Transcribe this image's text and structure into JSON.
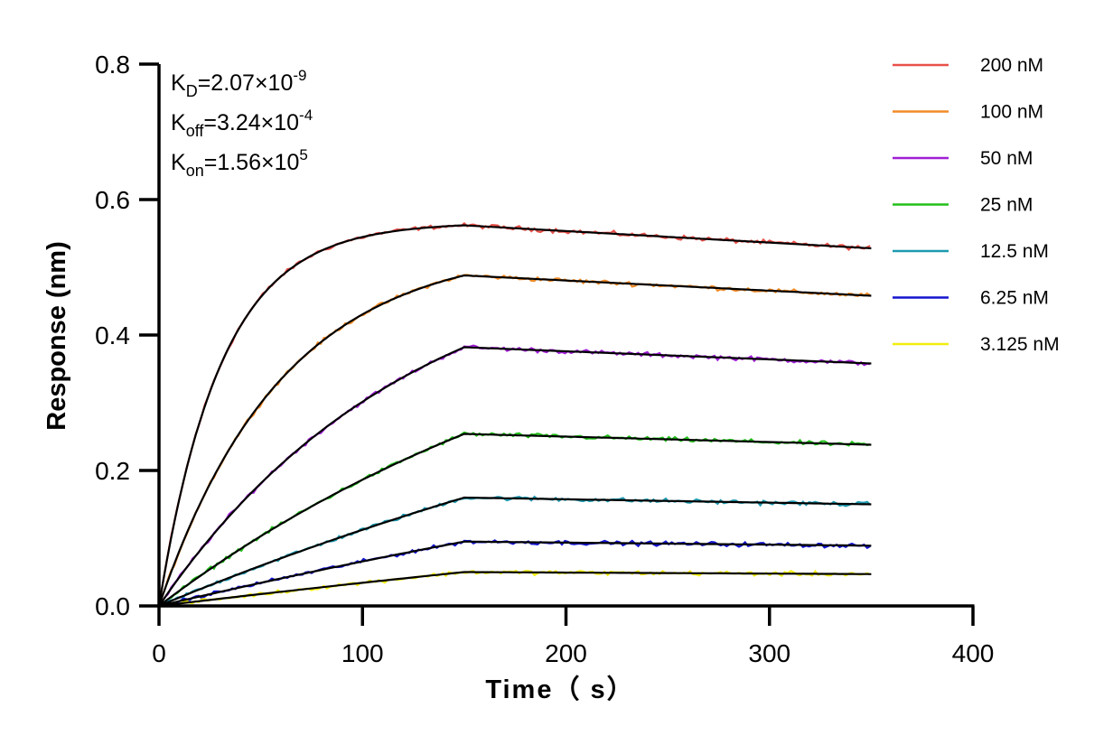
{
  "chart_data": {
    "type": "line",
    "title": "",
    "xlabel": "Time（ s）",
    "ylabel": "Response (nm)",
    "xlim": [
      0,
      400
    ],
    "ylim": [
      0,
      0.8
    ],
    "xticks": [
      0,
      100,
      200,
      300,
      400
    ],
    "yticks": [
      0.0,
      0.2,
      0.4,
      0.6,
      0.8
    ],
    "xtick_labels": [
      "0",
      "100",
      "200",
      "300",
      "400"
    ],
    "ytick_labels": [
      "0.0",
      "0.2",
      "0.4",
      "0.6",
      "0.8"
    ],
    "association_end": 150,
    "dissociation_end": 350,
    "legend_position": "top-right",
    "kinetics": [
      {
        "symbol": "K",
        "sub": "D",
        "mantissa": "=2.07×10",
        "exp": "-9"
      },
      {
        "symbol": "K",
        "sub": "off",
        "mantissa": "=3.24×10",
        "exp": "-4"
      },
      {
        "symbol": "K",
        "sub": "on",
        "mantissa": "=1.56×10",
        "exp": "5"
      }
    ],
    "fit_color": "#000000",
    "series": [
      {
        "name": "200 nM",
        "color": "#e8504a",
        "plateau": 0.562,
        "end": 0.528,
        "noise": 0.004,
        "k_obs": 0.0327
      },
      {
        "name": "100 nM",
        "color": "#f28c28",
        "plateau": 0.488,
        "end": 0.458,
        "noise": 0.004,
        "k_obs": 0.0165
      },
      {
        "name": "50 nM",
        "color": "#a01fd6",
        "plateau": 0.382,
        "end": 0.358,
        "noise": 0.004,
        "k_obs": 0.0081
      },
      {
        "name": "25 nM",
        "color": "#22c01a",
        "plateau": 0.254,
        "end": 0.238,
        "noise": 0.004,
        "k_obs": 0.0042
      },
      {
        "name": "12.5 nM",
        "color": "#1e9ab0",
        "plateau": 0.16,
        "end": 0.15,
        "noise": 0.004,
        "k_obs": 0.0022
      },
      {
        "name": "6.25 nM",
        "color": "#1414d0",
        "plateau": 0.095,
        "end": 0.089,
        "noise": 0.004,
        "k_obs": 0.0015
      },
      {
        "name": "3.125 nM",
        "color": "#f2ee10",
        "plateau": 0.05,
        "end": 0.047,
        "noise": 0.004,
        "k_obs": 0.001
      }
    ]
  }
}
